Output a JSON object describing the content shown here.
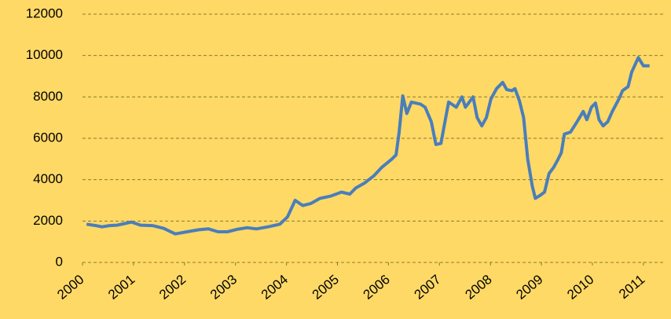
{
  "chart_data": {
    "type": "line",
    "x": [
      2000.08,
      2000.26,
      2000.38,
      2000.53,
      2000.68,
      2000.83,
      2000.96,
      2001.14,
      2001.37,
      2001.59,
      2001.82,
      2002.05,
      2002.28,
      2002.47,
      2002.66,
      2002.84,
      2003.03,
      2003.23,
      2003.41,
      2003.64,
      2003.87,
      2004.02,
      2004.17,
      2004.32,
      2004.48,
      2004.66,
      2004.86,
      2005.08,
      2005.24,
      2005.36,
      2005.54,
      2005.72,
      2005.87,
      2006.07,
      2006.15,
      2006.21,
      2006.28,
      2006.36,
      2006.45,
      2006.63,
      2006.72,
      2006.84,
      2006.93,
      2007.03,
      2007.1,
      2007.18,
      2007.33,
      2007.44,
      2007.51,
      2007.66,
      2007.74,
      2007.83,
      2007.92,
      2008.01,
      2008.12,
      2008.24,
      2008.32,
      2008.42,
      2008.48,
      2008.57,
      2008.65,
      2008.73,
      2008.82,
      2008.88,
      2008.98,
      2009.06,
      2009.15,
      2009.24,
      2009.33,
      2009.39,
      2009.45,
      2009.57,
      2009.7,
      2009.82,
      2009.89,
      2009.98,
      2010.06,
      2010.13,
      2010.21,
      2010.3,
      2010.39,
      2010.52,
      2010.59,
      2010.7,
      2010.77,
      2010.9,
      2011.0,
      2011.12
    ],
    "series": [
      {
        "color": "#4a7ebb",
        "values": [
          1850,
          1780,
          1720,
          1780,
          1800,
          1880,
          1950,
          1800,
          1780,
          1650,
          1380,
          1480,
          1580,
          1620,
          1480,
          1480,
          1600,
          1680,
          1620,
          1720,
          1850,
          2200,
          3000,
          2750,
          2850,
          3100,
          3200,
          3400,
          3300,
          3600,
          3850,
          4200,
          4600,
          5000,
          5200,
          6300,
          8050,
          7200,
          7750,
          7650,
          7500,
          6800,
          5700,
          5750,
          6700,
          7750,
          7500,
          8000,
          7500,
          8000,
          7000,
          6600,
          7000,
          7900,
          8400,
          8700,
          8350,
          8300,
          8400,
          7800,
          7000,
          5000,
          3700,
          3100,
          3250,
          3400,
          4300,
          4600,
          5000,
          5300,
          6200,
          6300,
          6800,
          7300,
          6900,
          7500,
          7700,
          6900,
          6600,
          6800,
          7300,
          7900,
          8300,
          8500,
          9200,
          9900,
          9500,
          9500
        ]
      }
    ],
    "xlim": [
      2000,
      2011.17
    ],
    "xticks": [
      2000,
      2001,
      2002,
      2003,
      2004,
      2005,
      2006,
      2007,
      2008,
      2009,
      2010,
      2011
    ],
    "ylim": [
      0,
      12000
    ],
    "yticks": [
      0,
      2000,
      4000,
      6000,
      8000,
      10000,
      12000
    ],
    "grid": true
  }
}
